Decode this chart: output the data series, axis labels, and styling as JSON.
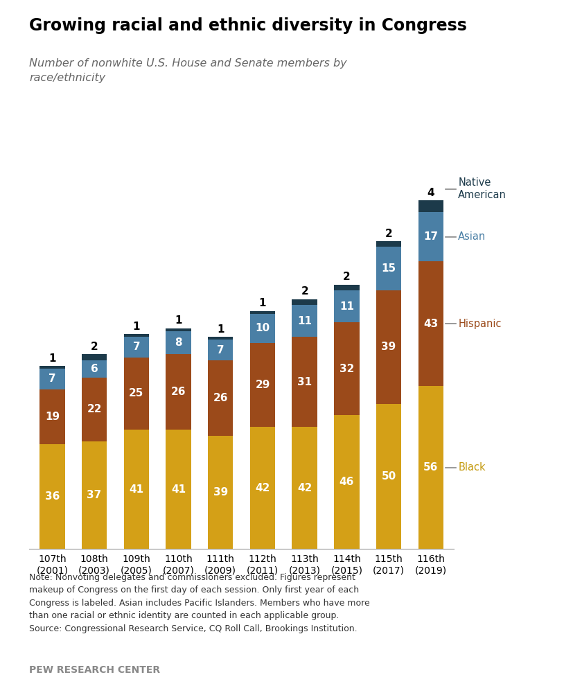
{
  "title": "Growing racial and ethnic diversity in Congress",
  "subtitle": "Number of nonwhite U.S. House and Senate members by\nrace/ethnicity",
  "categories": [
    "107th\n(2001)",
    "108th\n(2003)",
    "109th\n(2005)",
    "110th\n(2007)",
    "111th\n(2009)",
    "112th\n(2011)",
    "113th\n(2013)",
    "114th\n(2015)",
    "115th\n(2017)",
    "116th\n(2019)"
  ],
  "black": [
    36,
    37,
    41,
    41,
    39,
    42,
    42,
    46,
    50,
    56
  ],
  "hispanic": [
    19,
    22,
    25,
    26,
    26,
    29,
    31,
    32,
    39,
    43
  ],
  "asian": [
    7,
    6,
    7,
    8,
    7,
    10,
    11,
    11,
    15,
    17
  ],
  "native": [
    1,
    2,
    1,
    1,
    1,
    1,
    2,
    2,
    2,
    4
  ],
  "color_black": "#D4A017",
  "color_hispanic": "#9B4A1A",
  "color_asian": "#4A7FA5",
  "color_native": "#1C3A4A",
  "note": "Note: Nonvoting delegates and commissioners excluded. Figures represent\nmakeup of Congress on the first day of each session. Only first year of each\nCongress is labeled. Asian includes Pacific Islanders. Members who have more\nthan one racial or ethnic identity are counted in each applicable group.\nSource: Congressional Research Service, CQ Roll Call, Brookings Institution.",
  "source_label": "PEW RESEARCH CENTER",
  "background_color": "#FFFFFF"
}
